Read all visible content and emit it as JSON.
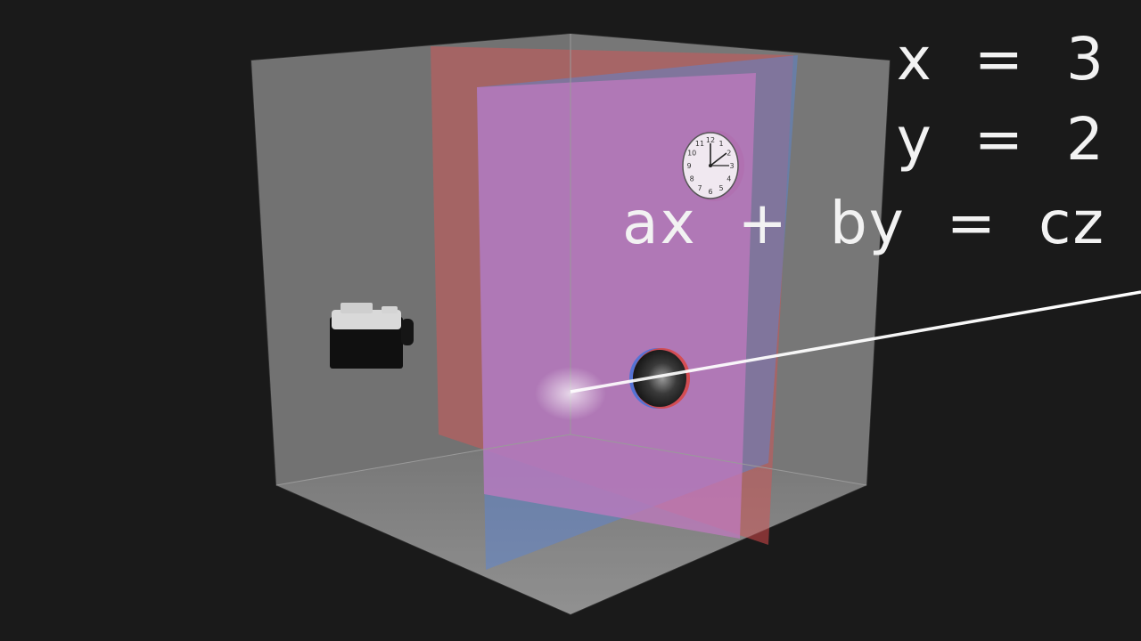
{
  "equations": [
    "x  =  3",
    "y  =  2",
    "ax  +  by  =  cz"
  ],
  "clock": {
    "numbers": [
      "12",
      "1",
      "2",
      "3",
      "4",
      "5",
      "6",
      "7",
      "8",
      "9",
      "10",
      "11"
    ]
  },
  "colors": {
    "background": "#1a1a1a",
    "box_glass": "#8a8a8a",
    "red_plane": "#d8484a",
    "blue_plane": "#4d7fe0",
    "magenta_plane": "#c873c8",
    "light_ray": "#ffffff",
    "text": "#f2f2f2"
  },
  "icons": [
    "camera-icon",
    "clock-icon",
    "sphere-icon"
  ]
}
